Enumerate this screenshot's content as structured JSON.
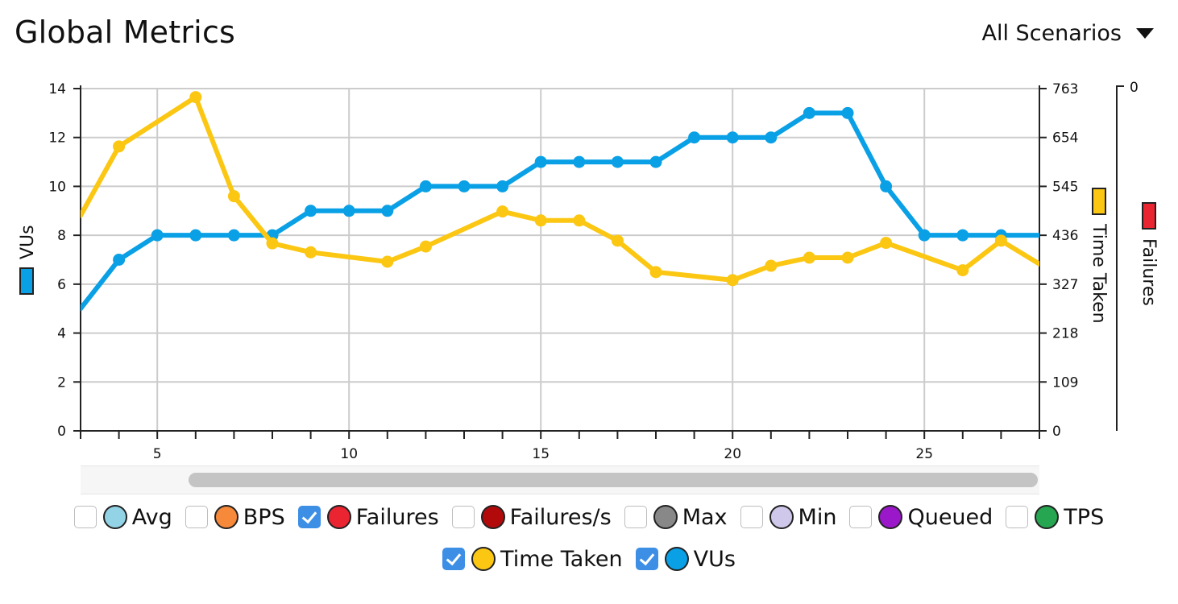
{
  "header": {
    "title": "Global Metrics",
    "scenario_selector": "All Scenarios"
  },
  "legend": [
    {
      "label": "Avg",
      "checked": false,
      "color": "#93d3e6"
    },
    {
      "label": "BPS",
      "checked": false,
      "color": "#f7893b"
    },
    {
      "label": "Failures",
      "checked": true,
      "color": "#ea2431"
    },
    {
      "label": "Failures/s",
      "checked": false,
      "color": "#b20a0a"
    },
    {
      "label": "Max",
      "checked": false,
      "color": "#888888"
    },
    {
      "label": "Min",
      "checked": false,
      "color": "#cfc8ea"
    },
    {
      "label": "Queued",
      "checked": false,
      "color": "#9a18c9"
    },
    {
      "label": "TPS",
      "checked": false,
      "color": "#26a650"
    },
    {
      "label": "Time Taken",
      "checked": true,
      "color": "#fbc713"
    },
    {
      "label": "VUs",
      "checked": true,
      "color": "#0aa0e6"
    }
  ],
  "chart_data": {
    "type": "line",
    "x_ticks": [
      5,
      10,
      15,
      20,
      25
    ],
    "xlim": [
      3,
      28
    ],
    "axes": {
      "left": {
        "label": "VUs",
        "ticks": [
          "0",
          "2",
          "4",
          "6",
          "8",
          "10",
          "12",
          "14"
        ],
        "range": [
          0,
          14
        ],
        "color": "#0aa0e6"
      },
      "right": {
        "label": "Time Taken",
        "ticks": [
          "0",
          "109",
          "218",
          "327",
          "436",
          "545",
          "654",
          "763"
        ],
        "range": [
          0,
          763
        ],
        "color": "#fbc713"
      },
      "right2": {
        "label": "Failures",
        "ticks": [
          "0"
        ],
        "color": "#ea2431"
      }
    },
    "grid": true,
    "series": [
      {
        "name": "VUs",
        "axis": "left",
        "color": "#0aa0e6",
        "x": [
          3,
          4,
          5,
          6,
          7,
          8,
          9,
          10,
          11,
          12,
          13,
          14,
          15,
          16,
          17,
          18,
          19,
          20,
          21,
          22,
          23,
          24,
          25,
          26,
          27,
          28
        ],
        "y": [
          5,
          7,
          8,
          8,
          8,
          8,
          9,
          9,
          9,
          10,
          10,
          10,
          11,
          11,
          11,
          11,
          12,
          12,
          12,
          13,
          13,
          10,
          8,
          8,
          8,
          8
        ],
        "markers": [
          false,
          true,
          true,
          true,
          true,
          true,
          true,
          true,
          true,
          true,
          true,
          true,
          true,
          true,
          true,
          true,
          true,
          true,
          true,
          true,
          true,
          true,
          true,
          true,
          true,
          false
        ]
      },
      {
        "name": "Time Taken",
        "axis": "right",
        "color": "#fbc713",
        "x": [
          3,
          4,
          6,
          7,
          8,
          9,
          11,
          12,
          14,
          15,
          16,
          17,
          18,
          20,
          21,
          22,
          23,
          24,
          26,
          27,
          28
        ],
        "y": [
          480,
          634,
          744,
          523,
          418,
          398,
          377,
          411,
          489,
          469,
          469,
          424,
          354,
          336,
          368,
          386,
          386,
          419,
          358,
          424,
          372
        ],
        "markers": [
          false,
          true,
          true,
          true,
          true,
          true,
          true,
          true,
          true,
          true,
          true,
          true,
          true,
          true,
          true,
          true,
          true,
          true,
          true,
          true,
          false
        ]
      }
    ]
  }
}
